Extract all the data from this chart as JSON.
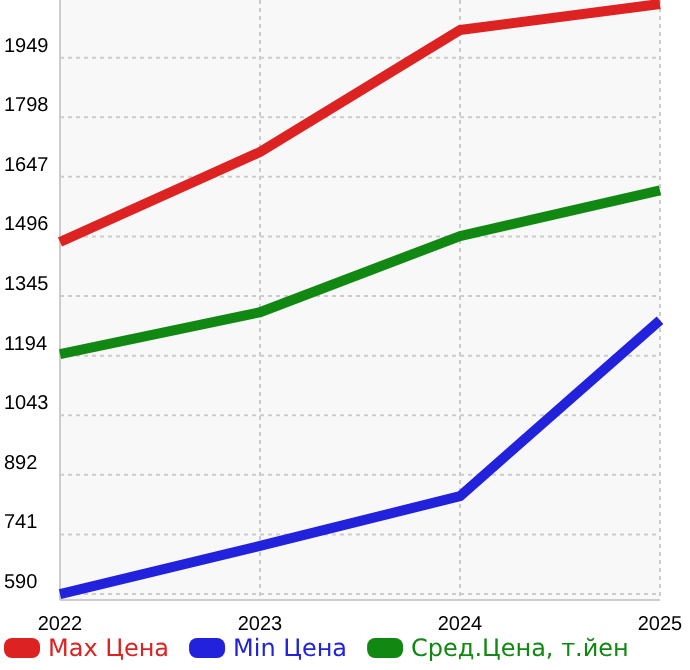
{
  "chart_data": {
    "type": "line",
    "x": [
      2022,
      2023,
      2024,
      2025
    ],
    "xlim": [
      2022,
      2025
    ],
    "xticks": [
      2022,
      2023,
      2024,
      2025
    ],
    "ylim": [
      575,
      2095
    ],
    "yticks": [
      590,
      741,
      892,
      1043,
      1194,
      1345,
      1496,
      1647,
      1798,
      1949
    ],
    "grid": true,
    "legend": "bottom",
    "marker": "none",
    "line_style": "solid",
    "series": [
      {
        "name": "Max Цена",
        "color": "#dd2222",
        "values": [
          1482,
          1710,
          2019,
          2085
        ]
      },
      {
        "name": "Min Цена",
        "color": "#2222dd",
        "values": [
          590,
          712,
          838,
          1284
        ]
      },
      {
        "name": "Сред.Цена, т.йен",
        "color": "#118811",
        "values": [
          1198,
          1304,
          1497,
          1613
        ]
      }
    ]
  }
}
